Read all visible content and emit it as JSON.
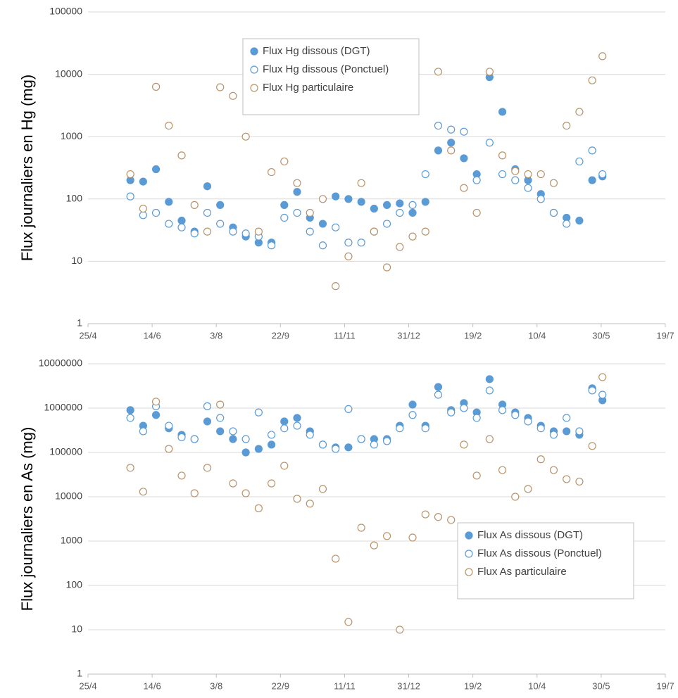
{
  "chart_data": [
    {
      "type": "scatter",
      "y_label": "Flux journaliers en Hg (mg)",
      "log_scale": true,
      "legend": "upper-center",
      "xlim": [
        0,
        450
      ],
      "xticks": [
        {
          "value": 0,
          "label": "25/4"
        },
        {
          "value": 50,
          "label": "14/6"
        },
        {
          "value": 100,
          "label": "3/8"
        },
        {
          "value": 150,
          "label": "22/9"
        },
        {
          "value": 200,
          "label": "11/11"
        },
        {
          "value": 250,
          "label": "31/12"
        },
        {
          "value": 300,
          "label": "19/2"
        },
        {
          "value": 350,
          "label": "10/4"
        },
        {
          "value": 400,
          "label": "30/5"
        },
        {
          "value": 450,
          "label": "19/7"
        }
      ],
      "ylim": [
        1,
        100000
      ],
      "yticks": [
        1,
        10,
        100,
        1000,
        10000,
        100000
      ],
      "x": [
        33,
        43,
        53,
        63,
        73,
        83,
        93,
        103,
        113,
        123,
        133,
        143,
        153,
        163,
        173,
        183,
        193,
        203,
        213,
        223,
        233,
        243,
        253,
        263,
        273,
        283,
        293,
        303,
        313,
        323,
        333,
        343,
        353,
        363,
        373,
        383,
        393,
        401
      ],
      "series": [
        {
          "name": "Flux Hg dissous (DGT)",
          "color": "#5b9bd5",
          "fill": "#5b9bd5",
          "values": [
            200,
            190,
            300,
            90,
            45,
            30,
            160,
            80,
            35,
            25,
            20,
            20,
            80,
            130,
            50,
            40,
            110,
            100,
            90,
            70,
            80,
            85,
            60,
            90,
            600,
            800,
            450,
            250,
            9000,
            2500,
            300,
            200,
            120,
            60,
            50,
            45,
            200,
            230
          ]
        },
        {
          "name": "Flux Hg dissous (Ponctuel)",
          "color": "#5b9bd5",
          "fill": "#ffffff",
          "values": [
            110,
            55,
            60,
            40,
            35,
            28,
            60,
            40,
            30,
            28,
            25,
            18,
            50,
            60,
            30,
            18,
            35,
            20,
            20,
            30,
            40,
            60,
            80,
            250,
            1500,
            1300,
            1200,
            200,
            800,
            250,
            200,
            150,
            100,
            60,
            40,
            400,
            600,
            250
          ]
        },
        {
          "name": "Flux Hg particulaire",
          "color": "#b8936a",
          "fill": "#ffffff",
          "values": [
            250,
            70,
            6300,
            1500,
            500,
            80,
            30,
            6200,
            4500,
            1000,
            30,
            270,
            400,
            180,
            60,
            100,
            4,
            12,
            180,
            30,
            8,
            17,
            25,
            30,
            11000,
            600,
            150,
            60,
            11000,
            500,
            280,
            250,
            250,
            180,
            1500,
            2500,
            8000,
            19500
          ]
        }
      ]
    },
    {
      "type": "scatter",
      "y_label": "Flux journaliers en As (mg)",
      "log_scale": true,
      "legend": "lower-right",
      "xlim": [
        0,
        450
      ],
      "xticks": [
        {
          "value": 0,
          "label": "25/4"
        },
        {
          "value": 50,
          "label": "14/6"
        },
        {
          "value": 100,
          "label": "3/8"
        },
        {
          "value": 150,
          "label": "22/9"
        },
        {
          "value": 200,
          "label": "11/11"
        },
        {
          "value": 250,
          "label": "31/12"
        },
        {
          "value": 300,
          "label": "19/2"
        },
        {
          "value": 350,
          "label": "10/4"
        },
        {
          "value": 400,
          "label": "30/5"
        },
        {
          "value": 450,
          "label": "19/7"
        }
      ],
      "ylim": [
        1,
        10000000
      ],
      "yticks": [
        1,
        10,
        100,
        1000,
        10000,
        100000,
        1000000,
        10000000
      ],
      "x": [
        33,
        43,
        53,
        63,
        73,
        83,
        93,
        103,
        113,
        123,
        133,
        143,
        153,
        163,
        173,
        183,
        193,
        203,
        213,
        223,
        233,
        243,
        253,
        263,
        273,
        283,
        293,
        303,
        313,
        323,
        333,
        343,
        353,
        363,
        373,
        383,
        393,
        401
      ],
      "series": [
        {
          "name": "Flux As dissous (DGT)",
          "color": "#5b9bd5",
          "fill": "#5b9bd5",
          "values": [
            900000,
            400000,
            700000,
            350000,
            250000,
            200000,
            500000,
            300000,
            200000,
            100000,
            120000,
            150000,
            500000,
            600000,
            300000,
            150000,
            130000,
            130000,
            200000,
            200000,
            200000,
            400000,
            1200000,
            400000,
            3000000,
            900000,
            1300000,
            800000,
            4500000,
            1200000,
            800000,
            600000,
            400000,
            300000,
            300000,
            250000,
            2800000,
            1500000
          ]
        },
        {
          "name": "Flux As dissous (Ponctuel)",
          "color": "#5b9bd5",
          "fill": "#ffffff",
          "values": [
            600000,
            300000,
            1100000,
            400000,
            220000,
            200000,
            1100000,
            600000,
            300000,
            200000,
            800000,
            250000,
            350000,
            400000,
            250000,
            150000,
            120000,
            950000,
            200000,
            150000,
            180000,
            350000,
            700000,
            350000,
            2000000,
            800000,
            1000000,
            600000,
            2500000,
            900000,
            700000,
            500000,
            350000,
            250000,
            600000,
            300000,
            2500000,
            2000000
          ]
        },
        {
          "name": "Flux As particulaire",
          "color": "#b8936a",
          "fill": "#ffffff",
          "values": [
            45000,
            13000,
            1400000,
            120000,
            30000,
            12000,
            45000,
            1200000,
            20000,
            12000,
            5500,
            20000,
            50000,
            9000,
            7000,
            15000,
            400,
            15,
            2000,
            800,
            1300,
            10,
            1200,
            4000,
            3500,
            3000,
            150000,
            30000,
            200000,
            40000,
            10000,
            15000,
            70000,
            40000,
            25000,
            22000,
            140000,
            5000000
          ]
        }
      ]
    }
  ]
}
